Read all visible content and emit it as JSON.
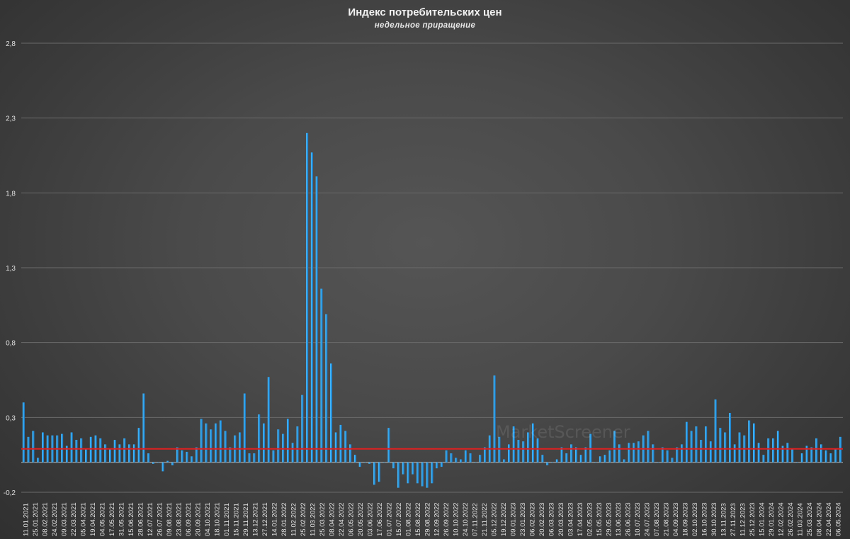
{
  "chart_data": {
    "type": "bar",
    "title": "Индекс потребительских цен",
    "subtitle": "недельное приращение",
    "ylim": [
      -0.2,
      2.8
    ],
    "yticks": [
      "-0,2",
      "0,3",
      "0,8",
      "1,3",
      "1,8",
      "2,3",
      "2,8"
    ],
    "ytick_values": [
      -0.2,
      0.3,
      0.8,
      1.3,
      1.8,
      2.3,
      2.8
    ],
    "grid": true,
    "reference_line": {
      "value": 0.09,
      "color": "#e02020"
    },
    "bar_color": "#2a9ee8",
    "x_labels": [
      "11.01.2021",
      "25.01.2021",
      "08.02.2021",
      "24.02.2021",
      "09.03.2021",
      "22.03.2021",
      "05.04.2021",
      "19.04.2021",
      "04.05.2021",
      "17.05.2021",
      "31.05.2021",
      "15.06.2021",
      "28.06.2021",
      "12.07.2021",
      "26.07.2021",
      "09.08.2021",
      "23.08.2021",
      "06.09.2021",
      "20.09.2021",
      "04.10.2021",
      "18.10.2021",
      "01.11.2021",
      "15.11.2021",
      "29.11.2021",
      "13.12.2021",
      "27.12.2021",
      "14.01.2022",
      "28.01.2022",
      "11.02.2022",
      "25.02.2022",
      "11.03.2022",
      "25.03.2022",
      "08.04.2022",
      "22.04.2022",
      "06.05.2022",
      "20.05.2022",
      "03.06.2022",
      "17.06.2022",
      "01.07.2022",
      "15.07.2022",
      "01.08.2022",
      "15.08.2022",
      "29.08.2022",
      "12.09.2022",
      "26.09.2022",
      "10.10.2022",
      "24.10.2022",
      "07.11.2022",
      "21.11.2022",
      "05.12.2022",
      "19.12.2022",
      "09.01.2023",
      "23.01.2023",
      "06.02.2023",
      "20.02.2023",
      "06.03.2023",
      "20.03.2023",
      "03.04.2023",
      "17.04.2023",
      "02.05.2023",
      "15.05.2023",
      "29.05.2023",
      "13.06.2023",
      "26.06.2023",
      "10.07.2023",
      "24.07.2023",
      "07.08.2023",
      "21.08.2023",
      "04.09.2023",
      "18.09.2023",
      "02.10.2023",
      "16.10.2023",
      "30.10.2023",
      "13.11.2023",
      "27.11.2023",
      "11.12.2023",
      "25.12.2023",
      "15.01.2024",
      "29.01.2024",
      "12.02.2024",
      "26.02.2024",
      "11.03.2024",
      "25.03.2024",
      "08.04.2024",
      "22.04.2024",
      "06.05.2024"
    ],
    "values": [
      0.4,
      0.17,
      0.21,
      0.03,
      0.2,
      0.18,
      0.18,
      0.18,
      0.19,
      0.11,
      0.2,
      0.15,
      0.16,
      0.09,
      0.17,
      0.18,
      0.16,
      0.12,
      0.09,
      0.15,
      0.12,
      0.16,
      0.12,
      0.12,
      0.23,
      0.46,
      0.06,
      -0.01,
      0.0,
      -0.06,
      0.01,
      -0.02,
      0.1,
      0.08,
      0.07,
      0.04,
      0.1,
      0.29,
      0.26,
      0.22,
      0.26,
      0.28,
      0.21,
      0.1,
      0.18,
      0.2,
      0.46,
      0.06,
      0.06,
      0.32,
      0.26,
      0.57,
      0.08,
      0.22,
      0.19,
      0.29,
      0.13,
      0.24,
      0.45,
      2.2,
      2.07,
      1.91,
      1.16,
      0.99,
      0.66,
      0.2,
      0.25,
      0.21,
      0.12,
      0.05,
      -0.03,
      0.0,
      -0.01,
      -0.15,
      -0.13,
      0.0,
      0.23,
      -0.04,
      -0.17,
      -0.08,
      -0.14,
      -0.08,
      -0.14,
      -0.16,
      -0.17,
      -0.14,
      -0.04,
      -0.03,
      0.08,
      0.06,
      0.03,
      0.02,
      0.08,
      0.06,
      0.0,
      0.05,
      0.1,
      0.18,
      0.58,
      0.17,
      0.02,
      0.12,
      0.24,
      0.15,
      0.14,
      0.2,
      0.26,
      0.16,
      0.05,
      -0.02,
      0.0,
      0.02,
      0.1,
      0.06,
      0.12,
      0.1,
      0.05,
      0.1,
      0.19,
      0.0,
      0.04,
      0.05,
      0.08,
      0.21,
      0.12,
      0.02,
      0.13,
      0.13,
      0.14,
      0.18,
      0.21,
      0.12,
      0.0,
      0.1,
      0.08,
      0.03,
      0.1,
      0.12,
      0.27,
      0.21,
      0.24,
      0.15,
      0.24,
      0.14,
      0.42,
      0.23,
      0.2,
      0.33,
      0.12,
      0.2,
      0.18,
      0.28,
      0.26,
      0.13,
      0.05,
      0.16,
      0.16,
      0.21,
      0.11,
      0.13,
      0.09,
      0.0,
      0.06,
      0.11,
      0.1,
      0.16,
      0.12,
      0.08,
      0.06,
      0.09,
      0.17
    ]
  },
  "watermark": "MarketScreener"
}
